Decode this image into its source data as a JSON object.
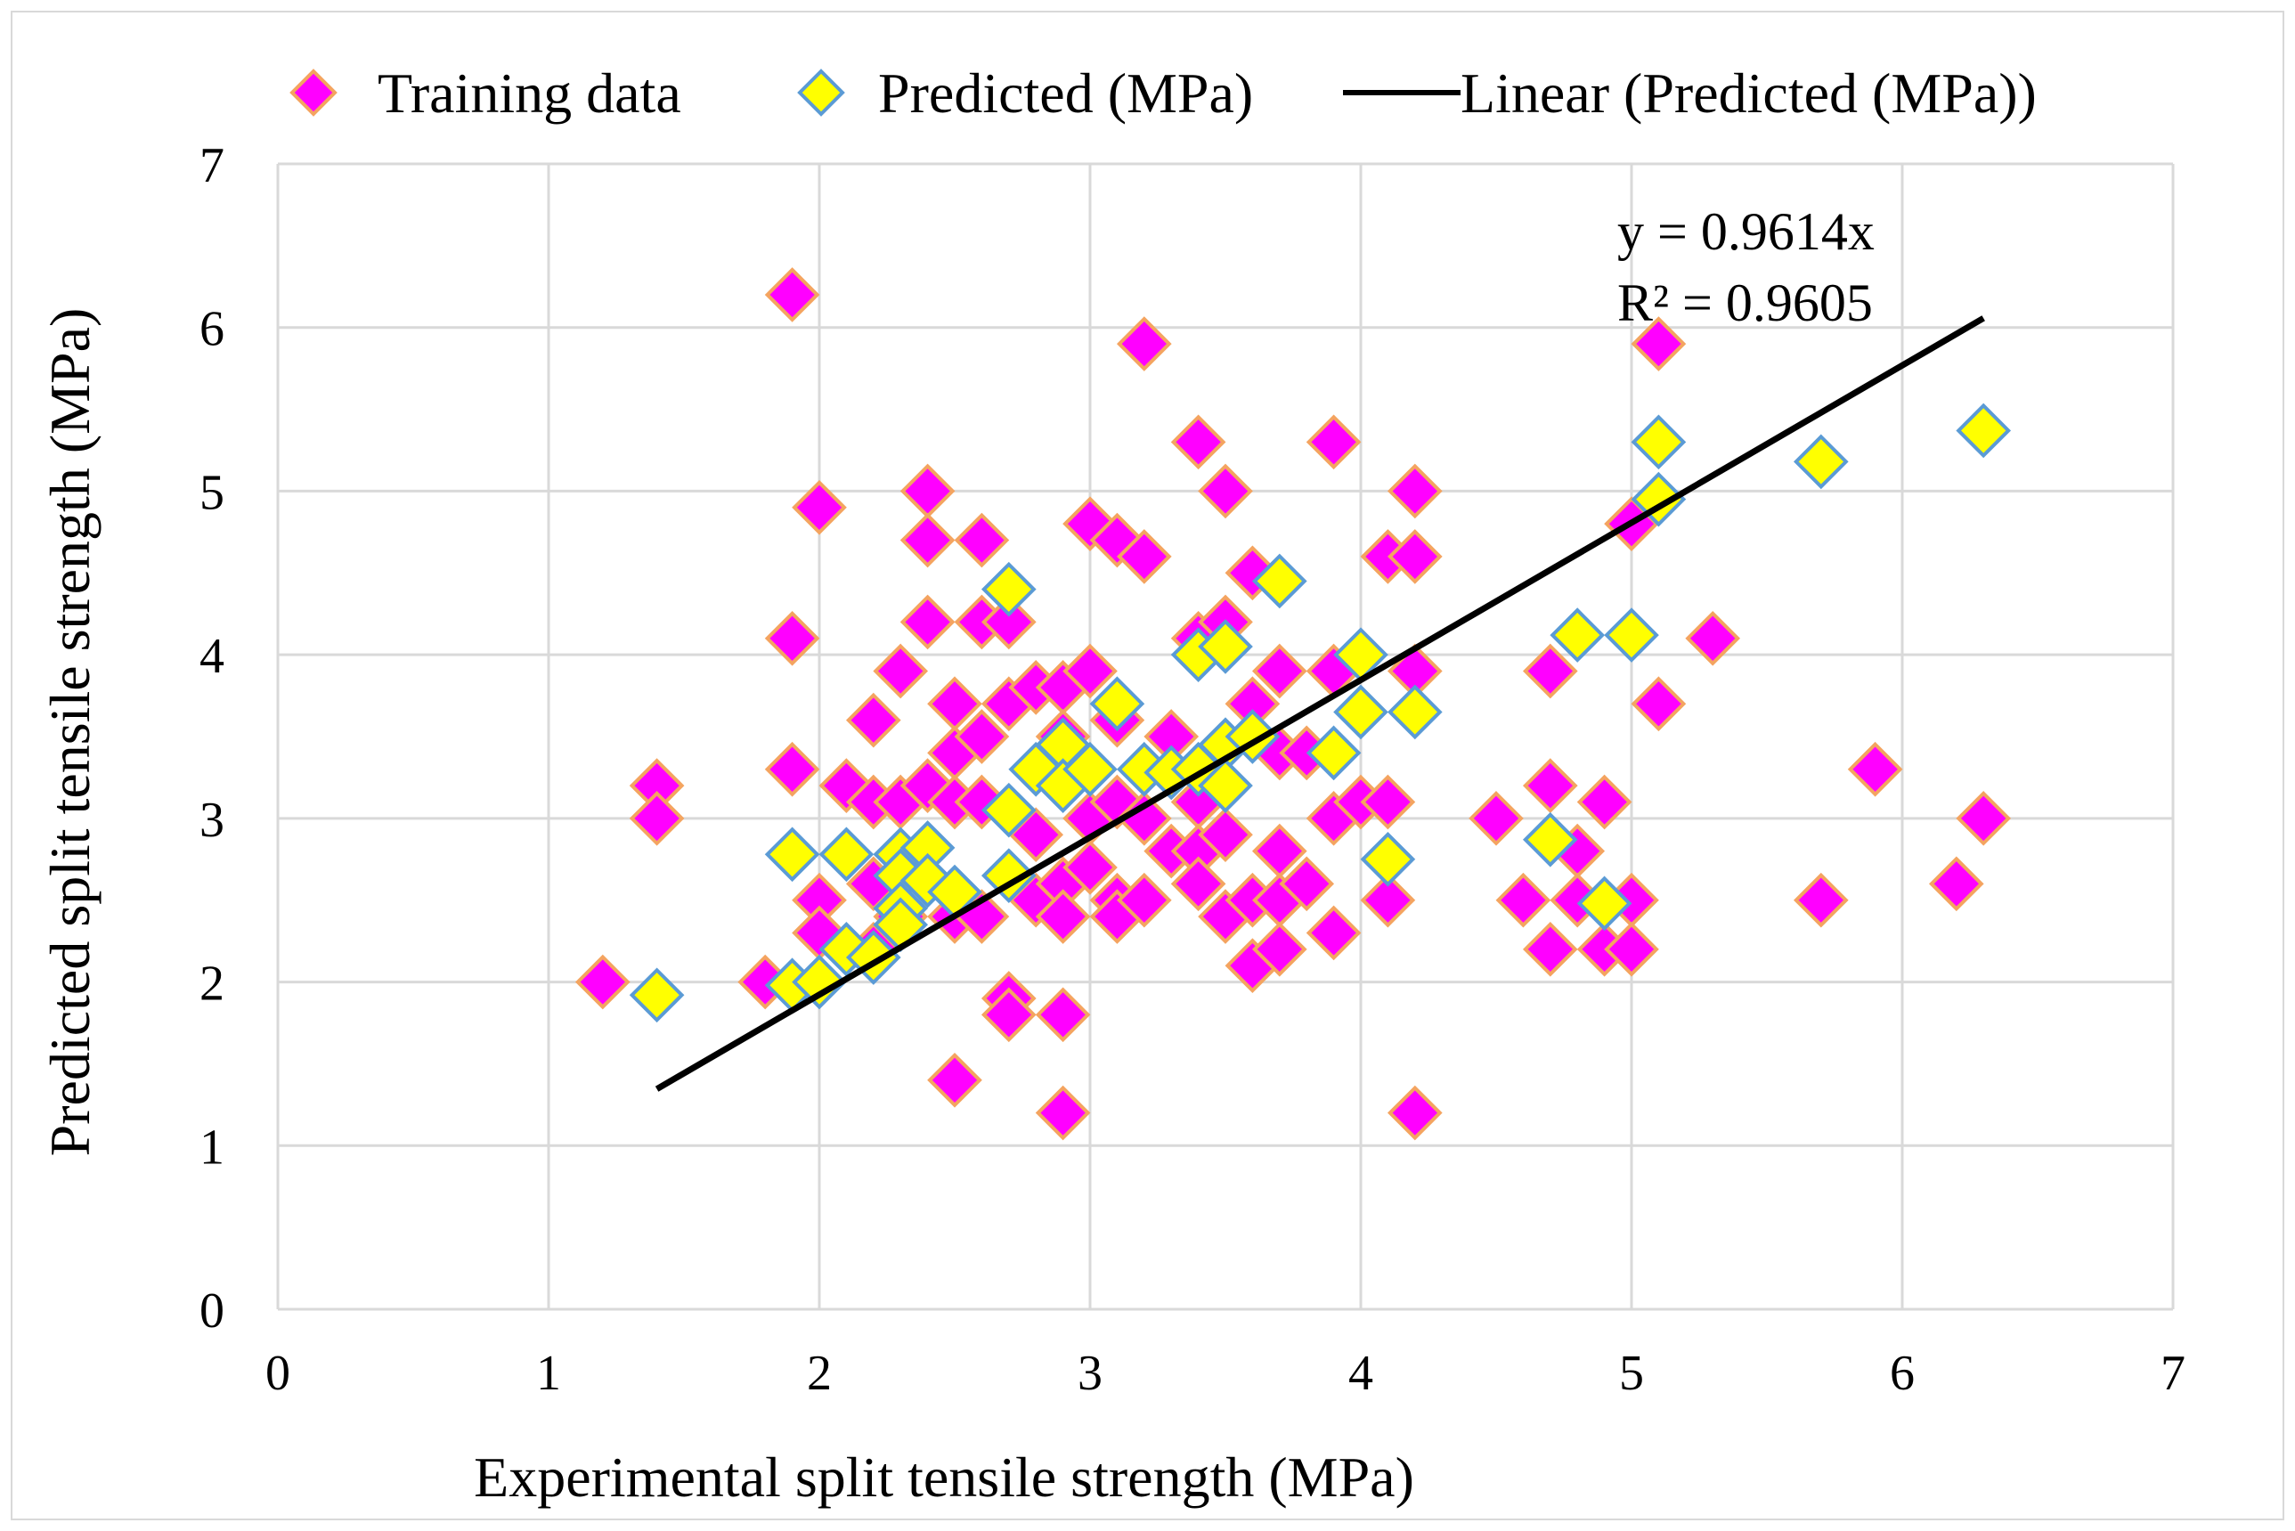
{
  "chart_data": {
    "type": "scatter",
    "xlabel": "Experimental split tensile strength (MPa)",
    "ylabel": "Predicted split tensile strength (MPa)",
    "xlim": [
      0,
      7
    ],
    "ylim": [
      0,
      7
    ],
    "x_ticks": [
      "0",
      "1",
      "2",
      "3",
      "4",
      "5",
      "6",
      "7"
    ],
    "y_ticks": [
      "0",
      "1",
      "2",
      "3",
      "4",
      "5",
      "6",
      "7"
    ],
    "grid": true,
    "legend_position": "top",
    "legend": [
      {
        "label": "Training data",
        "marker": "diamond",
        "fill": "#ff00ff",
        "stroke": "#f4a460"
      },
      {
        "label": "Predicted (MPa)",
        "marker": "diamond",
        "fill": "#ffff00",
        "stroke": "#5b9bd5"
      },
      {
        "label": "Linear (Predicted (MPa))",
        "marker": "line",
        "stroke": "#000000"
      }
    ],
    "trendline": {
      "equation": "y = 0.9614x",
      "r_squared": "R² = 0.9605",
      "slope": 0.9614,
      "x_range": [
        1.4,
        6.3
      ]
    },
    "series": [
      {
        "name": "Training data",
        "color": "#ff00ff",
        "edge": "#f4a460",
        "points": [
          [
            1.2,
            2.0
          ],
          [
            1.4,
            3.2
          ],
          [
            1.4,
            3.0
          ],
          [
            1.8,
            2.0
          ],
          [
            1.9,
            6.2
          ],
          [
            1.9,
            4.1
          ],
          [
            1.9,
            3.3
          ],
          [
            2.0,
            4.9
          ],
          [
            2.0,
            2.5
          ],
          [
            2.0,
            2.3
          ],
          [
            2.1,
            3.2
          ],
          [
            2.2,
            3.6
          ],
          [
            2.2,
            3.1
          ],
          [
            2.2,
            2.6
          ],
          [
            2.2,
            2.2
          ],
          [
            2.3,
            3.9
          ],
          [
            2.3,
            3.1
          ],
          [
            2.3,
            2.4
          ],
          [
            2.4,
            5.0
          ],
          [
            2.4,
            4.7
          ],
          [
            2.4,
            4.2
          ],
          [
            2.4,
            3.2
          ],
          [
            2.5,
            3.7
          ],
          [
            2.5,
            3.4
          ],
          [
            2.5,
            3.1
          ],
          [
            2.5,
            2.4
          ],
          [
            2.5,
            1.4
          ],
          [
            2.6,
            4.7
          ],
          [
            2.6,
            4.2
          ],
          [
            2.6,
            3.5
          ],
          [
            2.6,
            3.1
          ],
          [
            2.6,
            2.4
          ],
          [
            2.7,
            4.2
          ],
          [
            2.7,
            3.7
          ],
          [
            2.7,
            1.9
          ],
          [
            2.7,
            1.8
          ],
          [
            2.8,
            3.8
          ],
          [
            2.8,
            2.9
          ],
          [
            2.8,
            2.5
          ],
          [
            2.9,
            3.8
          ],
          [
            2.9,
            3.5
          ],
          [
            2.9,
            2.6
          ],
          [
            2.9,
            2.4
          ],
          [
            2.9,
            1.8
          ],
          [
            2.9,
            1.2
          ],
          [
            3.0,
            4.8
          ],
          [
            3.0,
            3.9
          ],
          [
            3.0,
            3.0
          ],
          [
            3.0,
            2.7
          ],
          [
            3.1,
            4.7
          ],
          [
            3.1,
            3.6
          ],
          [
            3.1,
            3.1
          ],
          [
            3.1,
            2.5
          ],
          [
            3.1,
            2.4
          ],
          [
            3.2,
            5.9
          ],
          [
            3.2,
            4.6
          ],
          [
            3.2,
            3.0
          ],
          [
            3.2,
            2.5
          ],
          [
            3.3,
            3.5
          ],
          [
            3.3,
            2.8
          ],
          [
            3.4,
            5.3
          ],
          [
            3.4,
            4.1
          ],
          [
            3.4,
            3.1
          ],
          [
            3.4,
            2.8
          ],
          [
            3.4,
            2.6
          ],
          [
            3.5,
            5.0
          ],
          [
            3.5,
            4.2
          ],
          [
            3.5,
            2.9
          ],
          [
            3.5,
            2.4
          ],
          [
            3.6,
            4.5
          ],
          [
            3.6,
            3.7
          ],
          [
            3.6,
            2.5
          ],
          [
            3.6,
            2.1
          ],
          [
            3.7,
            3.9
          ],
          [
            3.7,
            3.4
          ],
          [
            3.7,
            2.8
          ],
          [
            3.7,
            2.5
          ],
          [
            3.7,
            2.2
          ],
          [
            3.8,
            3.4
          ],
          [
            3.8,
            2.6
          ],
          [
            3.9,
            5.3
          ],
          [
            3.9,
            3.9
          ],
          [
            3.9,
            3.0
          ],
          [
            3.9,
            2.3
          ],
          [
            4.0,
            3.1
          ],
          [
            4.1,
            4.6
          ],
          [
            4.1,
            3.1
          ],
          [
            4.1,
            2.5
          ],
          [
            4.2,
            5.0
          ],
          [
            4.2,
            4.6
          ],
          [
            4.2,
            3.9
          ],
          [
            4.2,
            1.2
          ],
          [
            4.5,
            3.0
          ],
          [
            4.6,
            2.5
          ],
          [
            4.7,
            3.9
          ],
          [
            4.7,
            3.2
          ],
          [
            4.7,
            2.2
          ],
          [
            4.8,
            2.8
          ],
          [
            4.8,
            2.5
          ],
          [
            4.9,
            3.1
          ],
          [
            4.9,
            2.2
          ],
          [
            5.0,
            4.8
          ],
          [
            5.0,
            2.5
          ],
          [
            5.0,
            2.2
          ],
          [
            5.1,
            5.9
          ],
          [
            5.1,
            3.7
          ],
          [
            5.3,
            4.1
          ],
          [
            5.7,
            2.5
          ],
          [
            5.9,
            3.3
          ],
          [
            6.2,
            2.6
          ],
          [
            6.3,
            3.0
          ]
        ]
      },
      {
        "name": "Predicted (MPa)",
        "color": "#ffff00",
        "edge": "#5b9bd5",
        "points": [
          [
            1.4,
            1.92
          ],
          [
            1.9,
            2.78
          ],
          [
            1.9,
            1.98
          ],
          [
            2.0,
            2.0
          ],
          [
            2.1,
            2.78
          ],
          [
            2.1,
            2.2
          ],
          [
            2.2,
            2.15
          ],
          [
            2.3,
            2.78
          ],
          [
            2.3,
            2.65
          ],
          [
            2.3,
            2.45
          ],
          [
            2.3,
            2.35
          ],
          [
            2.4,
            2.82
          ],
          [
            2.4,
            2.62
          ],
          [
            2.5,
            2.55
          ],
          [
            2.7,
            4.4
          ],
          [
            2.7,
            3.05
          ],
          [
            2.7,
            2.65
          ],
          [
            2.8,
            3.3
          ],
          [
            2.9,
            3.45
          ],
          [
            2.9,
            3.2
          ],
          [
            3.0,
            3.3
          ],
          [
            3.1,
            3.7
          ],
          [
            3.2,
            3.3
          ],
          [
            3.3,
            3.28
          ],
          [
            3.4,
            4.0
          ],
          [
            3.4,
            3.3
          ],
          [
            3.5,
            4.05
          ],
          [
            3.5,
            3.45
          ],
          [
            3.5,
            3.2
          ],
          [
            3.6,
            3.5
          ],
          [
            3.7,
            4.45
          ],
          [
            3.9,
            3.4
          ],
          [
            4.0,
            4.0
          ],
          [
            4.0,
            3.65
          ],
          [
            4.1,
            2.75
          ],
          [
            4.2,
            3.65
          ],
          [
            4.7,
            2.87
          ],
          [
            4.8,
            4.12
          ],
          [
            4.9,
            2.48
          ],
          [
            5.0,
            4.12
          ],
          [
            5.1,
            5.3
          ],
          [
            5.1,
            4.95
          ],
          [
            5.7,
            5.18
          ],
          [
            6.3,
            5.37
          ]
        ]
      }
    ]
  }
}
